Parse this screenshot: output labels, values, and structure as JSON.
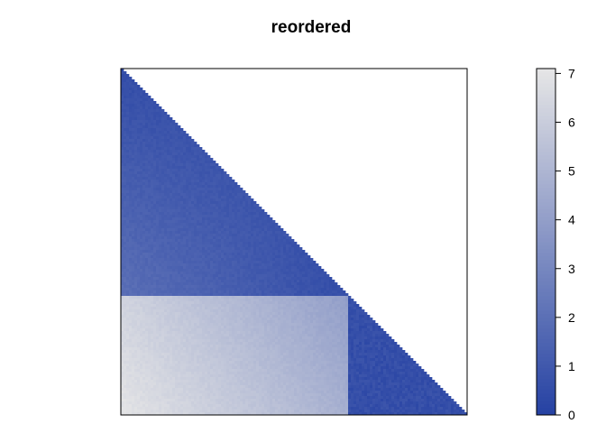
{
  "chart_data": {
    "type": "heatmap",
    "title": "reordered",
    "xlabel": "",
    "ylabel": "",
    "matrix": {
      "size": 128,
      "shape": "lower-triangular",
      "block_boundary_fraction": 0.66,
      "blocks": {
        "top_left": {
          "min": 0.5,
          "max": 2.0
        },
        "bottom_left": {
          "min": 4.0,
          "max": 7.0
        },
        "bottom_right": {
          "min": 0.3,
          "max": 1.0
        }
      }
    },
    "colorbar": {
      "min": 0,
      "max": 7.1,
      "ticks": [
        0,
        1,
        2,
        3,
        4,
        5,
        6,
        7
      ],
      "colors": {
        "low": "#2541a3",
        "high": "#e6e6e6"
      }
    },
    "grid": false,
    "legend": "right"
  }
}
